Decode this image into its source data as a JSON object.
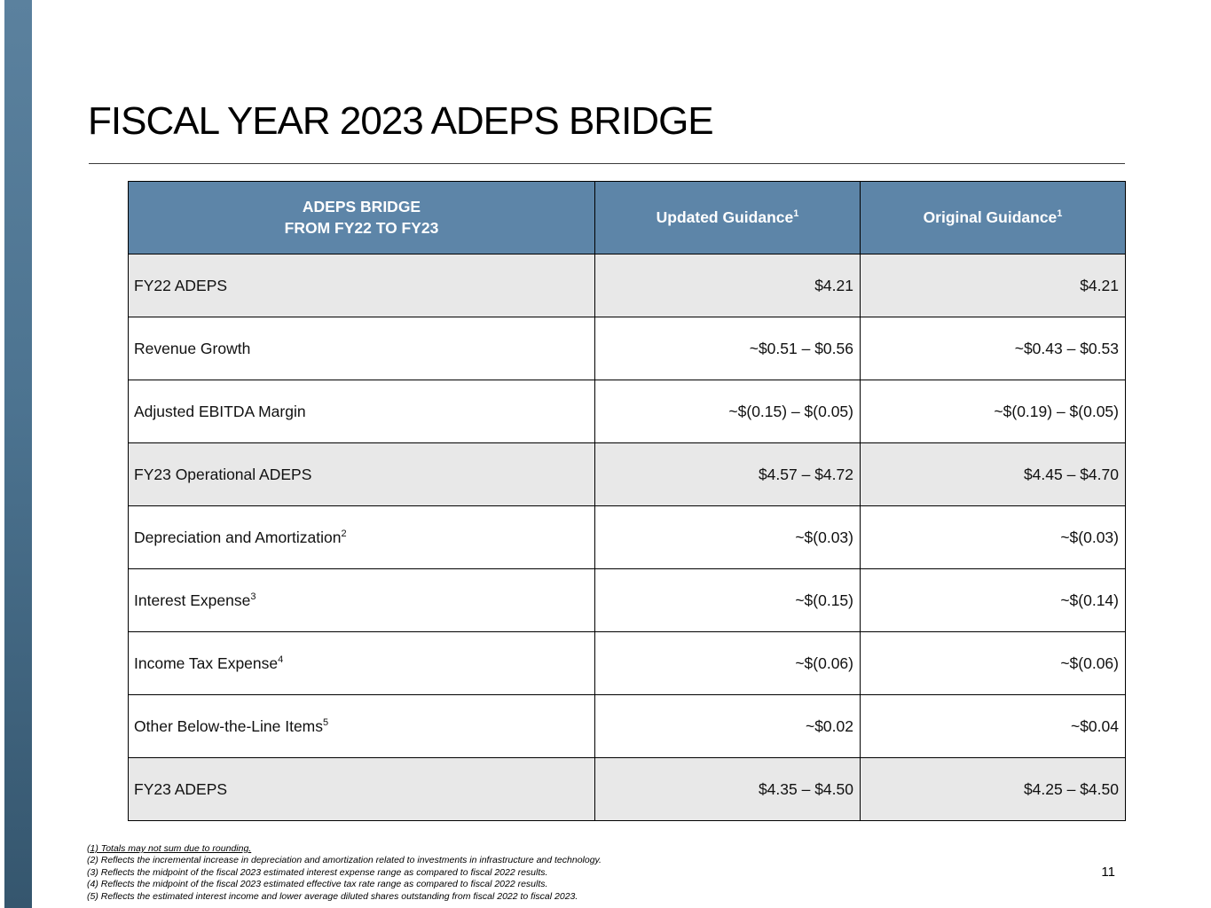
{
  "slide": {
    "title": "FISCAL YEAR 2023 ADEPS BRIDGE",
    "page_number": "11"
  },
  "table": {
    "header": {
      "col1_line1": "ADEPS BRIDGE",
      "col1_line2": "FROM FY22 TO FY23",
      "col2_label": "Updated Guidance",
      "col2_sup": "1",
      "col3_label": "Original Guidance",
      "col3_sup": "1"
    },
    "rows": [
      {
        "label": "FY22 ADEPS",
        "sup": "",
        "updated": "$4.21",
        "original": "$4.21"
      },
      {
        "label": "Revenue Growth",
        "sup": "",
        "updated": "~$0.51 – $0.56",
        "original": "~$0.43 – $0.53"
      },
      {
        "label": "Adjusted EBITDA Margin",
        "sup": "",
        "updated": "~$(0.15) – $(0.05)",
        "original": "~$(0.19) – $(0.05)"
      },
      {
        "label": "FY23 Operational ADEPS",
        "sup": "",
        "updated": "$4.57 – $4.72",
        "original": "$4.45 – $4.70"
      },
      {
        "label": "Depreciation and Amortization",
        "sup": "2",
        "updated": "~$(0.03)",
        "original": "~$(0.03)"
      },
      {
        "label": "Interest Expense",
        "sup": "3",
        "updated": "~$(0.15)",
        "original": "~$(0.14)"
      },
      {
        "label": "Income Tax Expense",
        "sup": "4",
        "updated": "~$(0.06)",
        "original": "~$(0.06)"
      },
      {
        "label": "Other Below-the-Line Items",
        "sup": "5",
        "updated": "~$0.02",
        "original": "~$0.04"
      },
      {
        "label": "FY23 ADEPS",
        "sup": "",
        "updated": "$4.35 – $4.50",
        "original": "$4.25 – $4.50"
      }
    ]
  },
  "footnotes": [
    "(1) Totals may not sum due to rounding.",
    "(2) Reflects the incremental increase in depreciation and amortization related to investments in infrastructure and technology.",
    "(3) Reflects the midpoint of the fiscal 2023 estimated interest expense range as compared to fiscal 2022 results.",
    "(4) Reflects the midpoint of the fiscal 2023 estimated effective tax rate range as compared to fiscal 2022 results.",
    "(5) Reflects the estimated interest income and lower average diluted shares outstanding from fiscal 2022 to fiscal 2023."
  ],
  "colors": {
    "header_bg": "#5d85a8",
    "shaded_row": "#e8e8e8",
    "sidebar": "#4c7390"
  }
}
